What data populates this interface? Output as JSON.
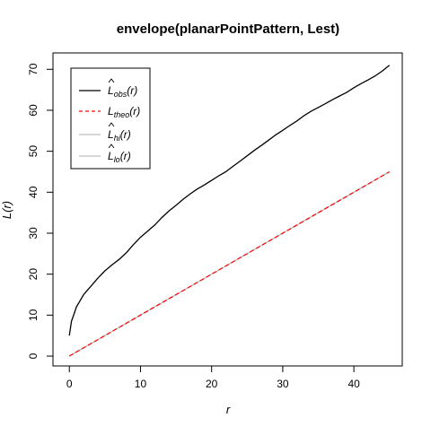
{
  "chart_data": {
    "type": "line",
    "title": "envelope(planarPointPattern, Lest)",
    "xlabel": "r",
    "ylabel": "L(r)",
    "xlim": [
      -2.3,
      46.8
    ],
    "ylim": [
      -2.4,
      74.0
    ],
    "xticks": [
      0,
      10,
      20,
      30,
      40
    ],
    "yticks": [
      0,
      10,
      20,
      30,
      40,
      50,
      60,
      70
    ],
    "legend_position": "top-left",
    "grid": false,
    "series": [
      {
        "key": "obs",
        "legend_main": "L",
        "legend_sub": "obs",
        "legend_tail": "(r)",
        "color": "#000000",
        "dash": "",
        "x": [
          0,
          0.3,
          0.7,
          1,
          1.5,
          2,
          2.5,
          3,
          4,
          5,
          6,
          7,
          8,
          9,
          10,
          11,
          12,
          13,
          14,
          15,
          16,
          17,
          18,
          19,
          20,
          21,
          22,
          23,
          24,
          25,
          26,
          27,
          28,
          29,
          30,
          31,
          32,
          33,
          34,
          35,
          36,
          37,
          38,
          39,
          40,
          41,
          42,
          43,
          44,
          45
        ],
        "y": [
          5.0,
          8.5,
          10.5,
          12.0,
          13.5,
          15.0,
          16.0,
          17.0,
          19.0,
          20.8,
          22.3,
          23.6,
          25.2,
          27.2,
          29.0,
          30.5,
          32.0,
          33.8,
          35.4,
          36.8,
          38.3,
          39.6,
          40.8,
          41.8,
          42.9,
          44.0,
          45.0,
          46.3,
          47.6,
          48.9,
          50.2,
          51.4,
          52.7,
          54.0,
          55.1,
          56.3,
          57.4,
          58.7,
          59.8,
          60.7,
          61.6,
          62.6,
          63.5,
          64.4,
          65.5,
          66.5,
          67.4,
          68.4,
          69.6,
          71.0
        ]
      },
      {
        "key": "theo",
        "legend_main": "L",
        "legend_sub": "theo",
        "legend_tail": "(r)",
        "color": "#ff0000",
        "dash": "5,3",
        "x": [
          0,
          45
        ],
        "y": [
          0,
          45
        ]
      },
      {
        "key": "hi",
        "legend_main": "L",
        "legend_sub": "hi",
        "legend_tail": "(r)",
        "color": "#bdbdbd",
        "dash": "",
        "x": [
          0,
          45
        ],
        "y": [
          0,
          45
        ]
      },
      {
        "key": "lo",
        "legend_main": "L",
        "legend_sub": "lo",
        "legend_tail": "(r)",
        "color": "#bdbdbd",
        "dash": "",
        "x": [
          0,
          45
        ],
        "y": [
          0,
          45
        ]
      }
    ]
  }
}
